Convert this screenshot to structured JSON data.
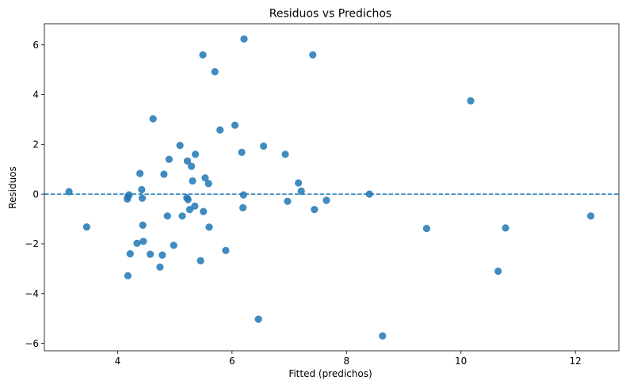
{
  "chart_data": {
    "type": "scatter",
    "title": "Residuos vs Predichos",
    "xlabel": "Fitted (predichos)",
    "ylabel": "Residuos",
    "xlim": [
      2.72,
      12.76
    ],
    "ylim": [
      -6.3,
      6.85
    ],
    "xticks": [
      4,
      6,
      8,
      10,
      12
    ],
    "yticks": [
      -6,
      -4,
      -2,
      0,
      2,
      4,
      6
    ],
    "xtick_labels": [
      "4",
      "6",
      "8",
      "10",
      "12"
    ],
    "ytick_labels": [
      "−6",
      "−4",
      "−2",
      "0",
      "2",
      "4",
      "6"
    ],
    "grid": false,
    "legend": "none",
    "reference_line": {
      "y": 0,
      "style": "dashed"
    },
    "point_color": "#1f77b4",
    "line_color": "#1f77b4",
    "points": [
      {
        "x": 3.15,
        "y": 0.1
      },
      {
        "x": 3.46,
        "y": -1.32
      },
      {
        "x": 4.17,
        "y": -0.2
      },
      {
        "x": 4.18,
        "y": -0.1
      },
      {
        "x": 4.18,
        "y": -3.28
      },
      {
        "x": 4.2,
        "y": -0.03
      },
      {
        "x": 4.22,
        "y": -2.4
      },
      {
        "x": 4.34,
        "y": -1.98
      },
      {
        "x": 4.39,
        "y": 0.83
      },
      {
        "x": 4.42,
        "y": 0.18
      },
      {
        "x": 4.43,
        "y": -0.16
      },
      {
        "x": 4.44,
        "y": -1.25
      },
      {
        "x": 4.45,
        "y": -1.9
      },
      {
        "x": 4.57,
        "y": -2.42
      },
      {
        "x": 4.62,
        "y": 3.03
      },
      {
        "x": 4.74,
        "y": -2.93
      },
      {
        "x": 4.78,
        "y": -2.45
      },
      {
        "x": 4.81,
        "y": 0.8
      },
      {
        "x": 4.87,
        "y": -0.88
      },
      {
        "x": 4.9,
        "y": 1.4
      },
      {
        "x": 4.98,
        "y": -2.06
      },
      {
        "x": 5.09,
        "y": 1.96
      },
      {
        "x": 5.13,
        "y": -0.88
      },
      {
        "x": 5.21,
        "y": -0.15
      },
      {
        "x": 5.22,
        "y": 1.33
      },
      {
        "x": 5.23,
        "y": -0.22
      },
      {
        "x": 5.26,
        "y": -0.62
      },
      {
        "x": 5.29,
        "y": 1.12
      },
      {
        "x": 5.31,
        "y": 0.53
      },
      {
        "x": 5.35,
        "y": -0.48
      },
      {
        "x": 5.36,
        "y": 1.6
      },
      {
        "x": 5.45,
        "y": -2.68
      },
      {
        "x": 5.49,
        "y": 5.6
      },
      {
        "x": 5.5,
        "y": -0.7
      },
      {
        "x": 5.53,
        "y": 0.65
      },
      {
        "x": 5.59,
        "y": 0.42
      },
      {
        "x": 5.6,
        "y": -1.33
      },
      {
        "x": 5.7,
        "y": 4.92
      },
      {
        "x": 5.79,
        "y": 2.58
      },
      {
        "x": 5.89,
        "y": -2.27
      },
      {
        "x": 6.05,
        "y": 2.77
      },
      {
        "x": 6.17,
        "y": 1.68
      },
      {
        "x": 6.19,
        "y": -0.55
      },
      {
        "x": 6.2,
        "y": -0.03
      },
      {
        "x": 6.21,
        "y": 6.24
      },
      {
        "x": 6.46,
        "y": -5.03
      },
      {
        "x": 6.55,
        "y": 1.93
      },
      {
        "x": 6.93,
        "y": 1.6
      },
      {
        "x": 6.97,
        "y": -0.29
      },
      {
        "x": 7.16,
        "y": 0.45
      },
      {
        "x": 7.21,
        "y": 0.12
      },
      {
        "x": 7.41,
        "y": 5.6
      },
      {
        "x": 7.44,
        "y": -0.62
      },
      {
        "x": 7.65,
        "y": -0.25
      },
      {
        "x": 8.4,
        "y": 0.0
      },
      {
        "x": 8.63,
        "y": -5.7
      },
      {
        "x": 9.4,
        "y": -1.38
      },
      {
        "x": 10.17,
        "y": 3.75
      },
      {
        "x": 10.65,
        "y": -3.1
      },
      {
        "x": 10.78,
        "y": -1.36
      },
      {
        "x": 12.27,
        "y": -0.88
      }
    ]
  }
}
